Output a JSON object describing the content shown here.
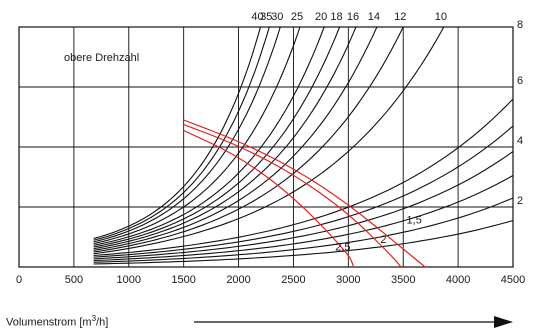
{
  "chart_data": {
    "type": "line",
    "title": "",
    "annotation": "obere Drehzahl",
    "x_axis": {
      "label_prefix": "Volumenstrom [m",
      "label_sup": "3",
      "label_suffix": "/h]",
      "range": [
        0,
        4500
      ],
      "ticks": [
        "0",
        "500",
        "1000",
        "1500",
        "2000",
        "2500",
        "3000",
        "3500",
        "4000",
        "4500"
      ],
      "arrow": "right"
    },
    "y_axis": {
      "label": "",
      "range": [
        0,
        8
      ],
      "ticks_right": [
        "2",
        "4",
        "6",
        "8"
      ],
      "grid_values": [
        2,
        4,
        6,
        8
      ]
    },
    "grid": true,
    "line_color": "#111111",
    "highlight_color": "#e02020",
    "curve_family": {
      "description_labels_top": [
        "40",
        "35",
        "30",
        "25",
        "20",
        "18",
        "16",
        "14",
        "12",
        "10"
      ],
      "x_start": 680,
      "curves": [
        {
          "name": "40",
          "end_x": 2200
        },
        {
          "name": "35",
          "end_x": 2280
        },
        {
          "name": "30",
          "end_x": 2380
        },
        {
          "name": "25",
          "end_x": 2560
        },
        {
          "name": "20",
          "end_x": 2780
        },
        {
          "name": "18",
          "end_x": 2920
        },
        {
          "name": "16",
          "end_x": 3070
        },
        {
          "name": "14",
          "end_x": 3260
        },
        {
          "name": "12",
          "end_x": 3500
        },
        {
          "name": "10",
          "end_x": 3870
        },
        {
          "name": "",
          "end_x": 4500
        },
        {
          "name": "",
          "end_x": 4500
        },
        {
          "name": "",
          "end_x": 4500
        },
        {
          "name": "",
          "end_x": 4500
        },
        {
          "name": "",
          "end_x": 4500
        },
        {
          "name": "",
          "end_x": 4500
        }
      ],
      "end_y_bottom_curves": [
        5.6,
        4.7,
        3.85,
        3.05,
        2.3,
        1.55
      ]
    },
    "red_series": [
      {
        "name": "2,5",
        "points": [
          [
            1500,
            4.55
          ],
          [
            2000,
            3.7
          ],
          [
            2500,
            2.35
          ],
          [
            3000,
            0.45
          ],
          [
            3050,
            0.0
          ]
        ]
      },
      {
        "name": "2",
        "points": [
          [
            1500,
            4.75
          ],
          [
            2000,
            4.05
          ],
          [
            2500,
            3.1
          ],
          [
            3000,
            1.8
          ],
          [
            3400,
            0.35
          ],
          [
            3480,
            0.0
          ]
        ]
      },
      {
        "name": "1,5",
        "points": [
          [
            1500,
            4.9
          ],
          [
            2000,
            4.2
          ],
          [
            2500,
            3.3
          ],
          [
            3000,
            2.1
          ],
          [
            3500,
            0.6
          ],
          [
            3700,
            0.0
          ]
        ]
      }
    ]
  }
}
